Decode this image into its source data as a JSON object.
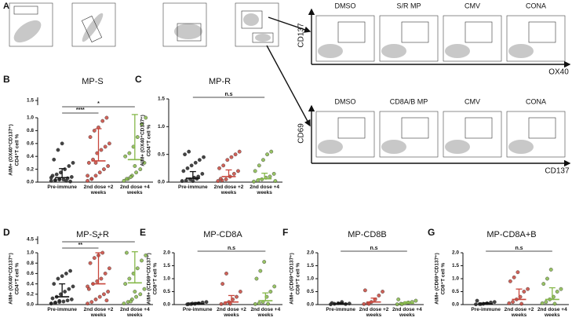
{
  "flow": {
    "panel_label": "A",
    "row1": {
      "titles": [
        "DMSO",
        "S/R MP",
        "CMV",
        "CONA"
      ],
      "y_label": "CD137",
      "x_label": "OX40"
    },
    "row2": {
      "titles": [
        "DMSO",
        "CD8A/B MP",
        "CMV",
        "CONA"
      ],
      "y_label": "CD69",
      "x_label": "CD137"
    }
  },
  "chart_data": [
    {
      "type": "dot",
      "panel_label": "B",
      "title": "MP-S",
      "ylabel": [
        "AIM+ (OX40⁺CD137⁺)",
        "CD4⁺T cell %"
      ],
      "categories": [
        "Pre-immune",
        "2nd dose +2 weeks",
        "2nd dose +4 weeks"
      ],
      "ylim": [
        0,
        1.0
      ],
      "yticks": [
        {
          "value": 0,
          "label": "0.0"
        },
        {
          "value": 0.2,
          "label": "0.2"
        },
        {
          "value": 0.4,
          "label": "0.4"
        },
        {
          "value": 0.6,
          "label": "0.6"
        },
        {
          "value": 0.8,
          "label": "0.8"
        },
        {
          "value": 1.0,
          "label": "1.0"
        }
      ],
      "ybreak_tick": {
        "value": 1.5,
        "label": "1.5"
      },
      "groups": [
        {
          "color": "#222222",
          "values": [
            0.02,
            0.03,
            0.05,
            0.04,
            0.06,
            0.08,
            0.1,
            0.12,
            0.15,
            0.2,
            0.25,
            0.3,
            0.35,
            0.5,
            0.6,
            0.02,
            0.01,
            0.07,
            0.03,
            0.04
          ],
          "mean": 0.07,
          "sd": 0.14
        },
        {
          "color": "#c8463c",
          "values": [
            0.02,
            0.05,
            0.1,
            0.15,
            0.2,
            0.25,
            0.3,
            0.35,
            0.45,
            0.5,
            0.55,
            0.6,
            0.7,
            0.8,
            0.85,
            0.95,
            1.0,
            0.1,
            0.05,
            0.3
          ],
          "mean": 0.33,
          "sd": 0.5
        },
        {
          "color": "#86b84a",
          "values": [
            0.02,
            0.05,
            0.1,
            0.15,
            0.2,
            0.3,
            0.4,
            0.45,
            0.55,
            0.7,
            0.9,
            1.0,
            0.05,
            0.08,
            0.25
          ],
          "mean": 0.35,
          "sd": 0.7
        }
      ],
      "comparisons": [
        {
          "label": "****",
          "categories": [
            0,
            1
          ]
        },
        {
          "label": "*",
          "categories": [
            0,
            2
          ]
        }
      ]
    },
    {
      "type": "dot",
      "panel_label": "C",
      "title": "MP-R",
      "ylabel": [
        "AIM+ (OX40⁺CD137⁺)",
        "CD4⁺T cell %"
      ],
      "categories": [
        "Pre-immune",
        "2nd dose +2 weeks",
        "2nd dose +4 weeks"
      ],
      "ylim": [
        0,
        1.5
      ],
      "yticks": [
        {
          "value": 0,
          "label": "0.0"
        },
        {
          "value": 0.5,
          "label": "0.5"
        },
        {
          "value": 1.0,
          "label": "1.0"
        },
        {
          "value": 1.5,
          "label": "1.5"
        }
      ],
      "groups": [
        {
          "color": "#222222",
          "values": [
            0.02,
            0.03,
            0.05,
            0.08,
            0.1,
            0.15,
            0.2,
            0.25,
            0.3,
            0.35,
            0.4,
            0.45,
            0.5,
            0.55,
            0.02,
            0.06
          ],
          "mean": 0.07,
          "sd": 0.12
        },
        {
          "color": "#c8463c",
          "values": [
            0.02,
            0.03,
            0.05,
            0.1,
            0.15,
            0.2,
            0.25,
            0.3,
            0.4,
            0.45,
            0.5,
            0.55,
            0.06
          ],
          "mean": 0.1,
          "sd": 0.12
        },
        {
          "color": "#86b84a",
          "values": [
            0.01,
            0.03,
            0.05,
            0.08,
            0.1,
            0.15,
            0.2,
            0.3,
            0.4,
            0.5,
            0.55,
            0.02
          ],
          "mean": 0.06,
          "sd": 0.1
        }
      ],
      "comparisons": [
        {
          "label": "n.s",
          "categories": [
            0,
            2
          ]
        }
      ]
    },
    {
      "type": "dot",
      "panel_label": "D",
      "title": "MP-S+R",
      "ylabel": [
        "AIM+ (OX40⁺CD137⁺)",
        "CD4⁺T cell %"
      ],
      "categories": [
        "Pre-immune",
        "2nd dose +2 weeks",
        "2nd dose +4 weeks"
      ],
      "ylim": [
        0,
        1.0
      ],
      "yticks": [
        {
          "value": 0,
          "label": "0.0"
        },
        {
          "value": 0.2,
          "label": "0.2"
        },
        {
          "value": 0.4,
          "label": "0.4"
        },
        {
          "value": 0.6,
          "label": "0.6"
        },
        {
          "value": 0.8,
          "label": "0.8"
        },
        {
          "value": 1.0,
          "label": "1.0"
        }
      ],
      "ybreak_tick": {
        "value": 4.5,
        "label": "4.5"
      },
      "groups": [
        {
          "color": "#222222",
          "values": [
            0.02,
            0.03,
            0.05,
            0.06,
            0.08,
            0.1,
            0.12,
            0.15,
            0.2,
            0.25,
            0.3,
            0.35,
            0.4,
            0.5,
            0.55,
            0.6,
            0.65,
            0.02,
            0.04,
            0.07
          ],
          "mean": 0.15,
          "sd": 0.25
        },
        {
          "color": "#c8463c",
          "values": [
            0.02,
            0.05,
            0.1,
            0.15,
            0.2,
            0.25,
            0.3,
            0.4,
            0.45,
            0.5,
            0.6,
            0.7,
            0.8,
            0.9,
            0.95,
            1.0,
            0.08,
            0.35
          ],
          "mean": 0.4,
          "sd": 0.6
        },
        {
          "color": "#86b84a",
          "values": [
            0.02,
            0.05,
            0.1,
            0.15,
            0.2,
            0.3,
            0.4,
            0.5,
            0.6,
            0.7,
            0.85,
            0.95,
            1.0,
            0.06,
            0.25
          ],
          "mean": 0.42,
          "sd": 0.6
        }
      ],
      "comparisons": [
        {
          "label": "**",
          "categories": [
            0,
            1
          ]
        },
        {
          "label": "*",
          "categories": [
            0,
            2
          ]
        }
      ]
    },
    {
      "type": "dot",
      "panel_label": "E",
      "title": "MP-CD8A",
      "ylabel": [
        "AIM+ (CD69⁺CD137⁺)",
        "CD8⁺T cell %"
      ],
      "categories": [
        "Pre-immune",
        "2nd dose +2 weeks",
        "2nd dose +4 weeks"
      ],
      "ylim": [
        0,
        2.0
      ],
      "yticks": [
        {
          "value": 0,
          "label": "0.0"
        },
        {
          "value": 0.5,
          "label": "0.5"
        },
        {
          "value": 1.0,
          "label": "1.0"
        },
        {
          "value": 1.5,
          "label": "1.5"
        },
        {
          "value": 2.0,
          "label": "2.0"
        }
      ],
      "groups": [
        {
          "color": "#222222",
          "values": [
            0.01,
            0.02,
            0.03,
            0.05,
            0.08,
            0.1,
            0.02,
            0.04
          ],
          "mean": 0.03,
          "sd": 0.05
        },
        {
          "color": "#c8463c",
          "values": [
            0.02,
            0.05,
            0.1,
            0.2,
            0.3,
            0.5,
            0.8,
            1.2,
            0.03
          ],
          "mean": 0.1,
          "sd": 0.25
        },
        {
          "color": "#86b84a",
          "values": [
            0.02,
            0.05,
            0.1,
            0.3,
            0.5,
            0.7,
            1.0,
            1.3,
            1.65,
            0.03
          ],
          "mean": 0.15,
          "sd": 0.3
        }
      ],
      "comparisons": [
        {
          "label": "n.s",
          "categories": [
            0,
            2
          ]
        }
      ]
    },
    {
      "type": "dot",
      "panel_label": "F",
      "title": "MP-CD8B",
      "ylabel": [
        "AIM+ (CD69⁺CD137⁺)",
        "CD8⁺T cell %"
      ],
      "categories": [
        "Pre-immune",
        "2nd dose +2 weeks",
        "2nd dose +4 weeks"
      ],
      "ylim": [
        0,
        2.0
      ],
      "yticks": [
        {
          "value": 0,
          "label": "0.0"
        },
        {
          "value": 0.5,
          "label": "0.5"
        },
        {
          "value": 1.0,
          "label": "1.0"
        },
        {
          "value": 1.5,
          "label": "1.5"
        },
        {
          "value": 2.0,
          "label": "2.0"
        }
      ],
      "groups": [
        {
          "color": "#222222",
          "values": [
            0.01,
            0.03,
            0.05,
            0.1,
            0.02,
            0.04,
            0.06
          ],
          "mean": 0.03,
          "sd": 0.04
        },
        {
          "color": "#c8463c",
          "values": [
            0.02,
            0.05,
            0.1,
            0.2,
            0.35,
            0.5,
            0.55,
            0.03
          ],
          "mean": 0.1,
          "sd": 0.15
        },
        {
          "color": "#86b84a",
          "values": [
            0.01,
            0.03,
            0.05,
            0.08,
            0.1,
            0.15,
            0.2,
            0.02
          ],
          "mean": 0.05,
          "sd": 0.06
        }
      ],
      "comparisons": [
        {
          "label": "n.s",
          "categories": [
            0,
            2
          ]
        }
      ]
    },
    {
      "type": "dot",
      "panel_label": "G",
      "title": "MP-CD8A+B",
      "ylabel": [
        "AIM+ (CD69⁺CD137⁺)",
        "CD8⁺T cell %"
      ],
      "categories": [
        "Pre-immune",
        "2nd dose +2 weeks",
        "2nd dose +4 weeks"
      ],
      "ylim": [
        0,
        2.0
      ],
      "yticks": [
        {
          "value": 0,
          "label": "0.0"
        },
        {
          "value": 0.5,
          "label": "0.5"
        },
        {
          "value": 1.0,
          "label": "1.0"
        },
        {
          "value": 1.5,
          "label": "1.5"
        },
        {
          "value": 2.0,
          "label": "2.0"
        }
      ],
      "groups": [
        {
          "color": "#222222",
          "values": [
            0.01,
            0.02,
            0.03,
            0.05,
            0.08,
            0.1,
            0.15,
            0.02
          ],
          "mean": 0.03,
          "sd": 0.04
        },
        {
          "color": "#c8463c",
          "values": [
            0.05,
            0.1,
            0.2,
            0.3,
            0.5,
            0.6,
            0.9,
            1.05,
            1.25,
            0.03
          ],
          "mean": 0.2,
          "sd": 0.4
        },
        {
          "color": "#86b84a",
          "values": [
            0.05,
            0.1,
            0.2,
            0.3,
            0.5,
            0.6,
            0.8,
            1.0,
            1.35,
            0.03
          ],
          "mean": 0.2,
          "sd": 0.45
        }
      ],
      "comparisons": [
        {
          "label": "n.s",
          "categories": [
            0,
            2
          ]
        }
      ]
    }
  ]
}
